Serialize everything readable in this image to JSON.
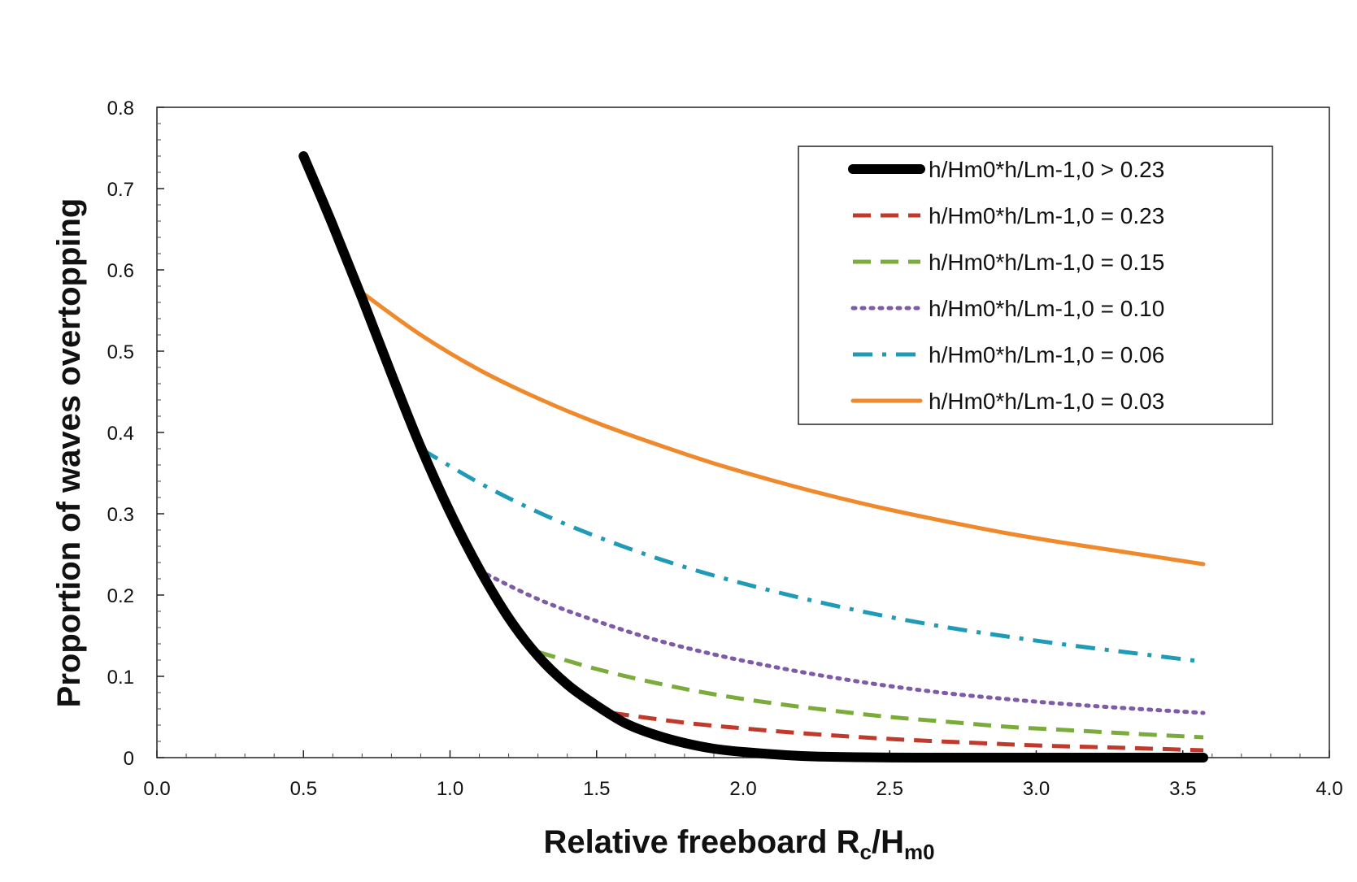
{
  "chart_data": {
    "type": "line",
    "title": "",
    "xlabel": "Relative freeboard R",
    "xlabel_sub1": "c",
    "xlabel_mid": "/H",
    "xlabel_sub2": "m0",
    "ylabel": "Proportion of waves overtopping",
    "xlim": [
      0.0,
      4.0
    ],
    "ylim": [
      0,
      0.8
    ],
    "xticks": [
      "0.0",
      "0.5",
      "1.0",
      "1.5",
      "2.0",
      "2.5",
      "3.0",
      "3.5",
      "4.0"
    ],
    "yticks": [
      "0",
      "0.1",
      "0.2",
      "0.3",
      "0.4",
      "0.5",
      "0.6",
      "0.7",
      "0.8"
    ],
    "grid": false,
    "legend_position": "top-right",
    "series": [
      {
        "name": "h/Hm0*h/Lm-1,0 > 0.23",
        "color": "#000000",
        "style": "solid-thick",
        "x": [
          0.5,
          0.6,
          0.7,
          0.8,
          0.9,
          1.0,
          1.1,
          1.2,
          1.3,
          1.4,
          1.5,
          1.6,
          1.7,
          1.8,
          1.9,
          2.0,
          2.2,
          2.4,
          2.6,
          2.8,
          3.0,
          3.2,
          3.4,
          3.57
        ],
        "y": [
          0.74,
          0.655,
          0.565,
          0.472,
          0.382,
          0.302,
          0.232,
          0.172,
          0.125,
          0.09,
          0.064,
          0.042,
          0.028,
          0.018,
          0.011,
          0.007,
          0.002,
          0.0005,
          0.0,
          0.0,
          0.0,
          0.0,
          0.0,
          0.0
        ]
      },
      {
        "name": "h/Hm0*h/Lm-1,0 = 0.23",
        "color": "#c0392b",
        "style": "dashed",
        "x": [
          1.55,
          1.8,
          2.0,
          2.2,
          2.5,
          2.8,
          3.0,
          3.3,
          3.57
        ],
        "y": [
          0.055,
          0.043,
          0.036,
          0.03,
          0.023,
          0.018,
          0.015,
          0.012,
          0.009
        ]
      },
      {
        "name": "h/Hm0*h/Lm-1,0 = 0.15",
        "color": "#7aab3b",
        "style": "dashed",
        "x": [
          1.3,
          1.5,
          1.7,
          1.9,
          2.1,
          2.3,
          2.5,
          2.7,
          2.9,
          3.1,
          3.3,
          3.57
        ],
        "y": [
          0.13,
          0.109,
          0.092,
          0.078,
          0.067,
          0.058,
          0.05,
          0.044,
          0.038,
          0.034,
          0.03,
          0.025
        ]
      },
      {
        "name": "h/Hm0*h/Lm-1,0 = 0.10",
        "color": "#7e5ba6",
        "style": "dotted",
        "x": [
          1.1,
          1.3,
          1.5,
          1.7,
          1.9,
          2.1,
          2.3,
          2.5,
          2.7,
          2.9,
          3.1,
          3.3,
          3.57
        ],
        "y": [
          0.23,
          0.195,
          0.168,
          0.145,
          0.127,
          0.112,
          0.099,
          0.088,
          0.079,
          0.072,
          0.066,
          0.061,
          0.055
        ]
      },
      {
        "name": "h/Hm0*h/Lm-1,0 = 0.06",
        "color": "#1f9bb7",
        "style": "dash-dot",
        "x": [
          0.9,
          1.1,
          1.3,
          1.5,
          1.7,
          1.9,
          2.1,
          2.3,
          2.5,
          2.7,
          2.9,
          3.1,
          3.3,
          3.57
        ],
        "y": [
          0.38,
          0.338,
          0.302,
          0.272,
          0.246,
          0.224,
          0.205,
          0.188,
          0.173,
          0.16,
          0.149,
          0.139,
          0.13,
          0.118
        ]
      },
      {
        "name": "h/Hm0*h/Lm-1,0 = 0.03",
        "color": "#f0892b",
        "style": "solid",
        "x": [
          0.7,
          0.9,
          1.1,
          1.3,
          1.5,
          1.7,
          1.9,
          2.1,
          2.3,
          2.5,
          2.7,
          2.9,
          3.1,
          3.3,
          3.57
        ],
        "y": [
          0.572,
          0.52,
          0.477,
          0.442,
          0.412,
          0.386,
          0.362,
          0.341,
          0.322,
          0.305,
          0.29,
          0.276,
          0.264,
          0.253,
          0.238
        ]
      }
    ]
  }
}
